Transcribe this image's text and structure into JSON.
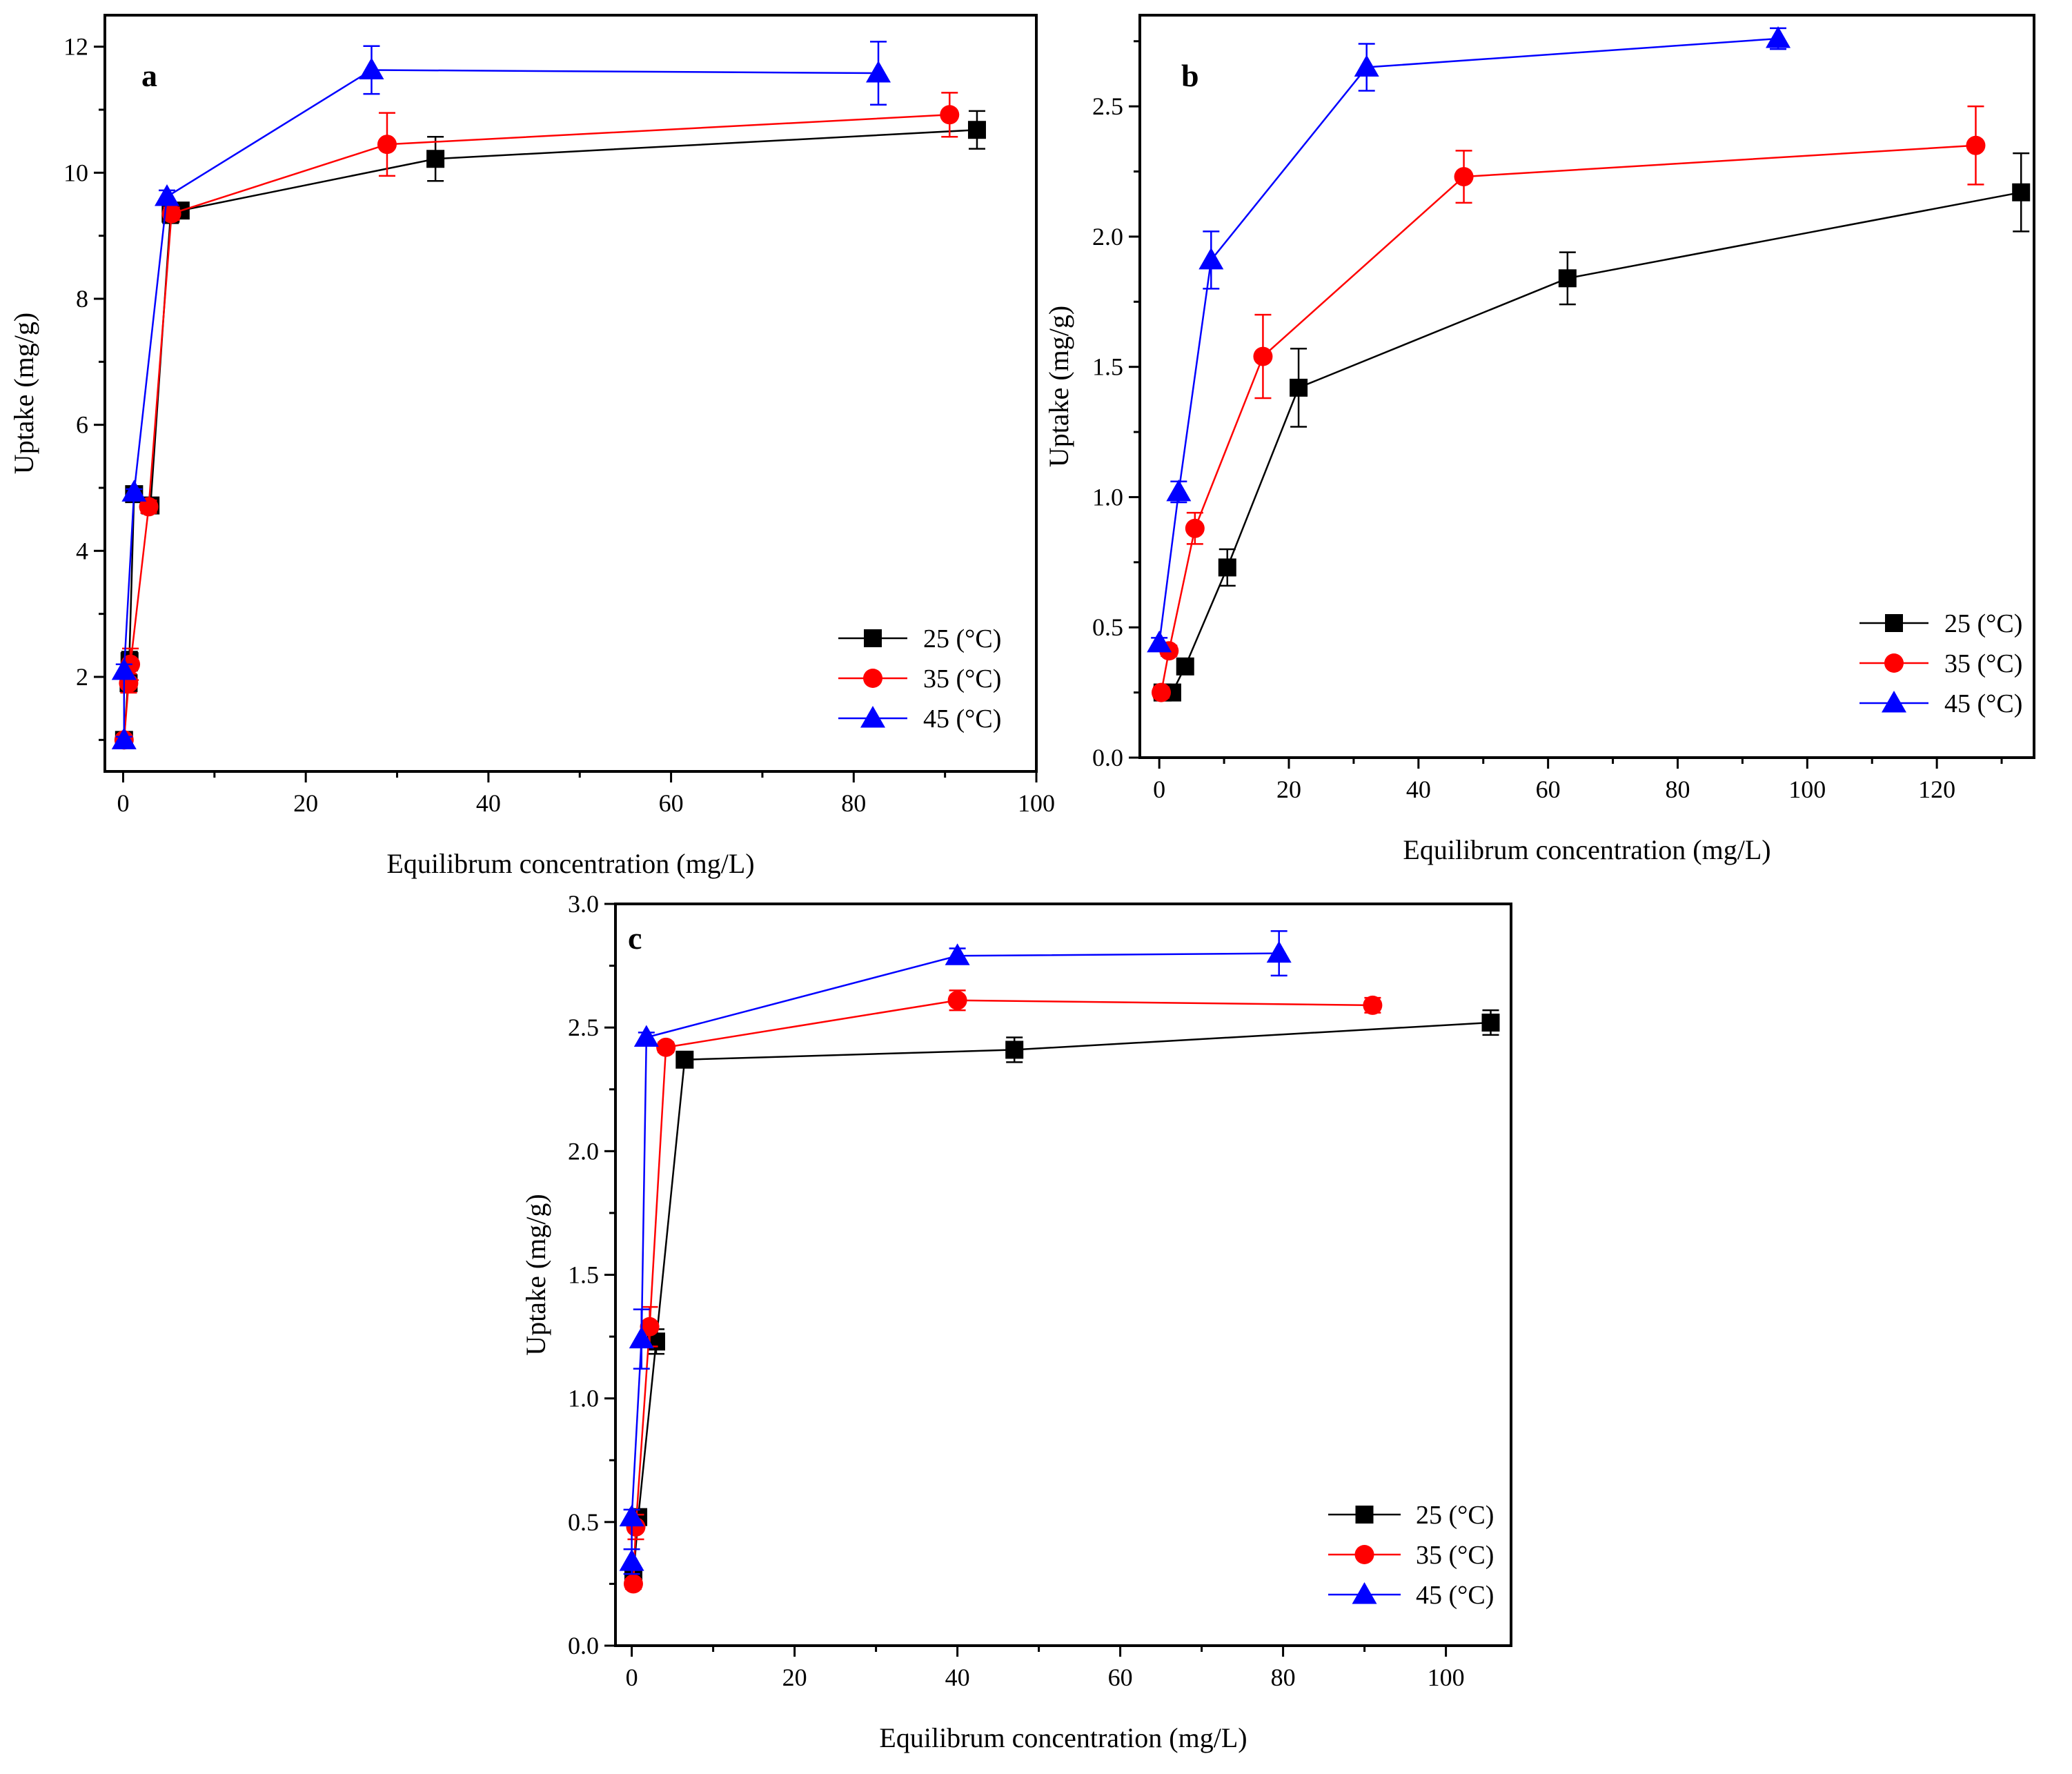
{
  "chart_data": [
    {
      "type": "line",
      "panel": "a",
      "xlabel": "Equilibrum concentration (mg/L)",
      "ylabel": "Uptake (mg/g)",
      "xlim": [
        -2,
        100
      ],
      "ylim": [
        0.5,
        12.5
      ],
      "xticks": [
        0,
        20,
        40,
        60,
        80,
        100
      ],
      "yticks": [
        2,
        4,
        6,
        8,
        10,
        12
      ],
      "legend_position": "bottom-right",
      "series": [
        {
          "name": "25 (°C)",
          "color": "#000000",
          "marker": "square",
          "points": [
            [
              0.1,
              1.0,
              0.05
            ],
            [
              0.7,
              2.25,
              0.15
            ],
            [
              0.6,
              1.9,
              0.1
            ],
            [
              1.2,
              4.9,
              0.05
            ],
            [
              3.0,
              4.72,
              0.08
            ],
            [
              5.2,
              9.35,
              0.15
            ],
            [
              6.3,
              9.4,
              0.1
            ],
            [
              34.2,
              10.22,
              0.35
            ],
            [
              93.5,
              10.68,
              0.3
            ]
          ]
        },
        {
          "name": "35 (°C)",
          "color": "#ff0000",
          "marker": "circle",
          "points": [
            [
              0.1,
              1.0,
              0.05
            ],
            [
              0.6,
              1.9,
              0.15
            ],
            [
              0.8,
              2.2,
              0.25
            ],
            [
              2.8,
              4.7,
              0.1
            ],
            [
              5.3,
              9.35,
              0.1
            ],
            [
              28.9,
              10.45,
              0.5
            ],
            [
              90.5,
              10.92,
              0.35
            ]
          ]
        },
        {
          "name": "45 (°C)",
          "color": "#0000ff",
          "marker": "triangle",
          "points": [
            [
              0.1,
              1.0,
              0.05
            ],
            [
              0.1,
              2.1,
              0.1
            ],
            [
              1.2,
              4.93,
              0.05
            ],
            [
              4.8,
              9.62,
              0.1
            ],
            [
              27.2,
              11.63,
              0.38
            ],
            [
              82.7,
              11.58,
              0.5
            ]
          ]
        }
      ]
    },
    {
      "type": "line",
      "panel": "b",
      "xlabel": "Equilibrum concentration (mg/L)",
      "ylabel": "Uptake (mg/g)",
      "xlim": [
        -3,
        135
      ],
      "ylim": [
        0.0,
        2.85
      ],
      "xticks": [
        0,
        20,
        40,
        60,
        80,
        100,
        120
      ],
      "yticks": [
        0.0,
        0.5,
        1.0,
        1.5,
        2.0,
        2.5
      ],
      "legend_position": "bottom-right",
      "series": [
        {
          "name": "25 (°C)",
          "color": "#000000",
          "marker": "square",
          "points": [
            [
              0.5,
              0.25,
              0.02
            ],
            [
              2.0,
              0.25,
              0.02
            ],
            [
              4.0,
              0.35,
              0.02
            ],
            [
              10.5,
              0.73,
              0.07
            ],
            [
              21.5,
              1.42,
              0.15
            ],
            [
              63.0,
              1.84,
              0.1
            ],
            [
              133.0,
              2.17,
              0.15
            ]
          ]
        },
        {
          "name": "35 (°C)",
          "color": "#ff0000",
          "marker": "circle",
          "points": [
            [
              0.3,
              0.25,
              0.02
            ],
            [
              1.5,
              0.41,
              0.02
            ],
            [
              5.5,
              0.88,
              0.06
            ],
            [
              16.0,
              1.54,
              0.16
            ],
            [
              47.0,
              2.23,
              0.1
            ],
            [
              126.0,
              2.35,
              0.15
            ]
          ]
        },
        {
          "name": "45 (°C)",
          "color": "#0000ff",
          "marker": "triangle",
          "points": [
            [
              0.0,
              0.44,
              0.02
            ],
            [
              3.0,
              1.02,
              0.04
            ],
            [
              8.0,
              1.91,
              0.11
            ],
            [
              32.0,
              2.65,
              0.09
            ],
            [
              95.5,
              2.76,
              0.04
            ]
          ]
        }
      ]
    },
    {
      "type": "line",
      "panel": "c",
      "xlabel": "Equilibrum concentration (mg/L)",
      "ylabel": "Uptake (mg/g)",
      "xlim": [
        -2,
        108
      ],
      "ylim": [
        0.0,
        3.0
      ],
      "xticks": [
        0,
        20,
        40,
        60,
        80,
        100
      ],
      "yticks": [
        0.0,
        0.5,
        1.0,
        1.5,
        2.0,
        2.5,
        3.0
      ],
      "legend_position": "bottom-right",
      "series": [
        {
          "name": "25 (°C)",
          "color": "#000000",
          "marker": "square",
          "points": [
            [
              0.2,
              0.28,
              0.02
            ],
            [
              0.8,
              0.52,
              0.03
            ],
            [
              3.0,
              1.23,
              0.05
            ],
            [
              6.5,
              2.37,
              0.03
            ],
            [
              47.0,
              2.41,
              0.05
            ],
            [
              105.5,
              2.52,
              0.05
            ]
          ]
        },
        {
          "name": "35 (°C)",
          "color": "#ff0000",
          "marker": "circle",
          "points": [
            [
              0.2,
              0.25,
              0.02
            ],
            [
              0.5,
              0.48,
              0.05
            ],
            [
              2.2,
              1.29,
              0.08
            ],
            [
              4.2,
              2.42,
              0.02
            ],
            [
              40.0,
              2.61,
              0.04
            ],
            [
              91.0,
              2.59,
              0.03
            ]
          ]
        },
        {
          "name": "45 (°C)",
          "color": "#0000ff",
          "marker": "triangle",
          "points": [
            [
              0.0,
              0.34,
              0.05
            ],
            [
              0.0,
              0.52,
              0.03
            ],
            [
              1.2,
              1.24,
              0.12
            ],
            [
              1.8,
              2.46,
              0.02
            ],
            [
              40.0,
              2.79,
              0.03
            ],
            [
              79.5,
              2.8,
              0.09
            ]
          ]
        }
      ]
    }
  ]
}
